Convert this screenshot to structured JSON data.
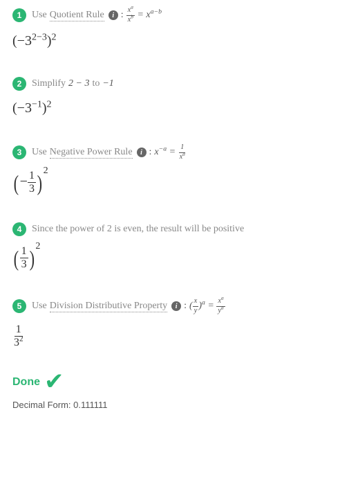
{
  "colors": {
    "accent": "#2bb673",
    "text_muted": "#888888",
    "text_body": "#555555",
    "text_dark": "#333333",
    "info_bg": "#666666",
    "background": "#ffffff"
  },
  "steps": [
    {
      "number": "1",
      "prefix": "Use ",
      "rule": "Quotient Rule",
      "has_info": true,
      "formula_html": "<span class='frac frac-sm'><span class='num'>x<sup>a</sup></span><span class='den'>x<sup>b</sup></span></span> = x<sup>a−b</sup>",
      "result_html": "(−3<sup>2−3</sup>)<sup>2</sup>"
    },
    {
      "number": "2",
      "prefix": "Simplify ",
      "plain_math": "2 − 3",
      "mid": " to ",
      "plain_math2": "−1",
      "result_html": "(−3<sup>−1</sup>)<sup>2</sup>"
    },
    {
      "number": "3",
      "prefix": "Use ",
      "rule": "Negative Power Rule",
      "has_info": true,
      "formula_html": "x<sup>−a</sup> = <span class='frac frac-sm'><span class='num'>1</span><span class='den'>x<sup>a</sup></span></span>",
      "result_html": "<span class='paren-big'>(</span>−<span class='frac'><span class='num'>1</span><span class='den'>3</span></span><span class='paren-big'>)</span><sup style='vertical-align:18px'>2</sup>"
    },
    {
      "number": "4",
      "prefix": "Since the power of 2 is even, the result will be positive",
      "result_html": "<span class='paren-big'>(</span><span class='frac'><span class='num'>1</span><span class='den'>3</span></span><span class='paren-big'>)</span><sup style='vertical-align:18px'>2</sup>"
    },
    {
      "number": "5",
      "prefix": "Use ",
      "rule": "Division Distributive Property",
      "has_info": true,
      "formula_html": "(<span class='frac frac-sm'><span class='num'>x</span><span class='den'>y</span></span>)<sup>a</sup> = <span class='frac frac-sm'><span class='num'>x<sup>a</sup></span><span class='den'>y<sup>a</sup></span></span>",
      "result_html": "<span class='frac'><span class='num'>1</span><span class='den'>3<sup>2</sup></span></span>"
    }
  ],
  "done": {
    "label": "Done",
    "check": "✔"
  },
  "decimal": {
    "label": "Decimal Form: ",
    "value": "0.111111"
  }
}
